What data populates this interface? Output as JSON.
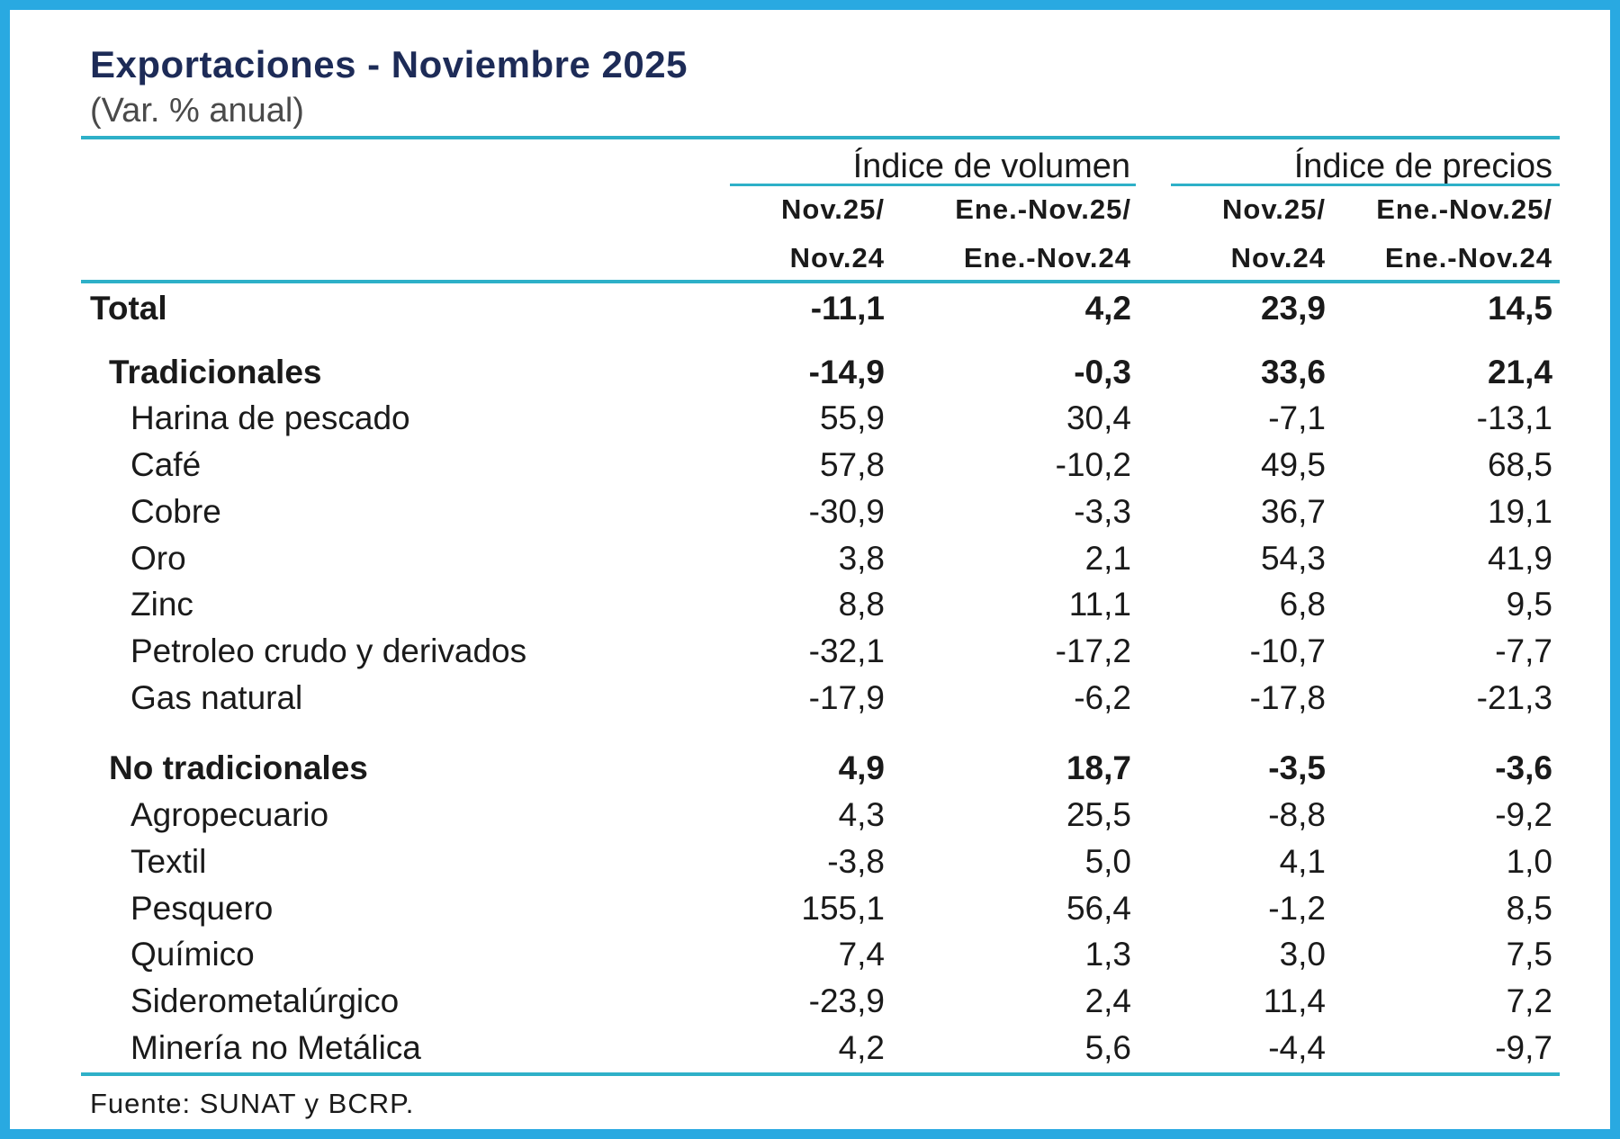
{
  "chart_data": {
    "type": "table",
    "title": "Exportaciones - Noviembre 2025",
    "subtitle": "(Var. % anual)",
    "column_groups": [
      {
        "label": "Índice de volumen",
        "columns": [
          {
            "line1": "Nov.25/",
            "line2": "Nov.24"
          },
          {
            "line1": "Ene.-Nov.25/",
            "line2": "Ene.-Nov.24"
          }
        ]
      },
      {
        "label": "Índice de precios",
        "columns": [
          {
            "line1": "Nov.25/",
            "line2": "Nov.24"
          },
          {
            "line1": "Ene.-Nov.25/",
            "line2": "Ene.-Nov.24"
          }
        ]
      }
    ],
    "rows": [
      {
        "label": "Total",
        "level": 0,
        "bold": true,
        "values": [
          "-11,1",
          "4,2",
          "23,9",
          "14,5"
        ]
      },
      {
        "label": "Tradicionales",
        "level": 1,
        "bold": true,
        "values": [
          "-14,9",
          "-0,3",
          "33,6",
          "21,4"
        ]
      },
      {
        "label": "Harina de pescado",
        "level": 2,
        "bold": false,
        "values": [
          "55,9",
          "30,4",
          "-7,1",
          "-13,1"
        ]
      },
      {
        "label": "Café",
        "level": 2,
        "bold": false,
        "values": [
          "57,8",
          "-10,2",
          "49,5",
          "68,5"
        ]
      },
      {
        "label": "Cobre",
        "level": 2,
        "bold": false,
        "values": [
          "-30,9",
          "-3,3",
          "36,7",
          "19,1"
        ]
      },
      {
        "label": "Oro",
        "level": 2,
        "bold": false,
        "values": [
          "3,8",
          "2,1",
          "54,3",
          "41,9"
        ]
      },
      {
        "label": "Zinc",
        "level": 2,
        "bold": false,
        "values": [
          "8,8",
          "11,1",
          "6,8",
          "9,5"
        ]
      },
      {
        "label": "Petroleo crudo y derivados",
        "level": 2,
        "bold": false,
        "values": [
          "-32,1",
          "-17,2",
          "-10,7",
          "-7,7"
        ]
      },
      {
        "label": "Gas natural",
        "level": 2,
        "bold": false,
        "values": [
          "-17,9",
          "-6,2",
          "-17,8",
          "-21,3"
        ]
      },
      {
        "label": "No tradicionales",
        "level": 1,
        "bold": true,
        "values": [
          "4,9",
          "18,7",
          "-3,5",
          "-3,6"
        ]
      },
      {
        "label": "Agropecuario",
        "level": 2,
        "bold": false,
        "values": [
          "4,3",
          "25,5",
          "-8,8",
          "-9,2"
        ]
      },
      {
        "label": "Textil",
        "level": 2,
        "bold": false,
        "values": [
          "-3,8",
          "5,0",
          "4,1",
          "1,0"
        ]
      },
      {
        "label": "Pesquero",
        "level": 2,
        "bold": false,
        "values": [
          "155,1",
          "56,4",
          "-1,2",
          "8,5"
        ]
      },
      {
        "label": "Químico",
        "level": 2,
        "bold": false,
        "values": [
          "7,4",
          "1,3",
          "3,0",
          "7,5"
        ]
      },
      {
        "label": "Siderometalúrgico",
        "level": 2,
        "bold": false,
        "values": [
          "-23,9",
          "2,4",
          "11,4",
          "7,2"
        ]
      },
      {
        "label": "Minería no Metálica",
        "level": 2,
        "bold": false,
        "values": [
          "4,2",
          "5,6",
          "-4,4",
          "-9,7"
        ]
      }
    ],
    "source": "Fuente: SUNAT y BCRP."
  },
  "colors": {
    "frame": "#29a9e1",
    "rule": "#2eb0c8",
    "title": "#1d2b57",
    "text": "#1a1a1a"
  }
}
